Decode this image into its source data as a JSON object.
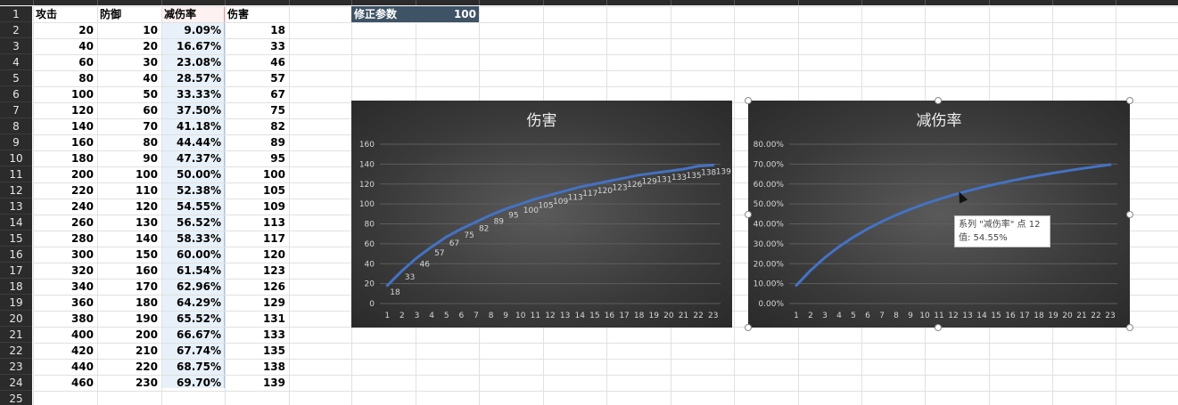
{
  "sheet": {
    "headers": {
      "attack": "攻击",
      "defense": "防御",
      "reduction": "减伤率",
      "damage": "伤害"
    },
    "row_numbers": [
      "1",
      "2",
      "3",
      "4",
      "5",
      "6",
      "7",
      "8",
      "9",
      "10",
      "11",
      "12",
      "13",
      "14",
      "15",
      "16",
      "17",
      "18",
      "19",
      "20",
      "21",
      "22",
      "23",
      "24",
      "25"
    ],
    "rows": [
      [
        "20",
        "10",
        "9.09%",
        "18"
      ],
      [
        "40",
        "20",
        "16.67%",
        "33"
      ],
      [
        "60",
        "30",
        "23.08%",
        "46"
      ],
      [
        "80",
        "40",
        "28.57%",
        "57"
      ],
      [
        "100",
        "50",
        "33.33%",
        "67"
      ],
      [
        "120",
        "60",
        "37.50%",
        "75"
      ],
      [
        "140",
        "70",
        "41.18%",
        "82"
      ],
      [
        "160",
        "80",
        "44.44%",
        "89"
      ],
      [
        "180",
        "90",
        "47.37%",
        "95"
      ],
      [
        "200",
        "100",
        "50.00%",
        "100"
      ],
      [
        "220",
        "110",
        "52.38%",
        "105"
      ],
      [
        "240",
        "120",
        "54.55%",
        "109"
      ],
      [
        "260",
        "130",
        "56.52%",
        "113"
      ],
      [
        "280",
        "140",
        "58.33%",
        "117"
      ],
      [
        "300",
        "150",
        "60.00%",
        "120"
      ],
      [
        "320",
        "160",
        "61.54%",
        "123"
      ],
      [
        "340",
        "170",
        "62.96%",
        "126"
      ],
      [
        "360",
        "180",
        "64.29%",
        "129"
      ],
      [
        "380",
        "190",
        "65.52%",
        "131"
      ],
      [
        "400",
        "200",
        "66.67%",
        "133"
      ],
      [
        "420",
        "210",
        "67.74%",
        "135"
      ],
      [
        "440",
        "220",
        "68.75%",
        "138"
      ],
      [
        "460",
        "230",
        "69.70%",
        "139"
      ]
    ],
    "param_label": "修正参数",
    "param_value": "100"
  },
  "tooltip": {
    "line1": "系列 \"减伤率\" 点 12",
    "line2": "值: 54.55%"
  },
  "chart_data": [
    {
      "type": "line",
      "title": "伤害",
      "x": [
        1,
        2,
        3,
        4,
        5,
        6,
        7,
        8,
        9,
        10,
        11,
        12,
        13,
        14,
        15,
        16,
        17,
        18,
        19,
        20,
        21,
        22,
        23
      ],
      "series": [
        {
          "values": [
            18,
            33,
            46,
            57,
            67,
            75,
            82,
            89,
            95,
            100,
            105,
            109,
            113,
            117,
            120,
            123,
            126,
            129,
            131,
            133,
            135,
            138,
            139
          ]
        }
      ],
      "ylim": [
        0,
        160
      ],
      "yticks": [
        "0",
        "20",
        "40",
        "60",
        "80",
        "100",
        "120",
        "140",
        "160"
      ],
      "data_labels": true,
      "grid": true,
      "line_color": "#4472c4"
    },
    {
      "type": "line",
      "title": "减伤率",
      "x": [
        1,
        2,
        3,
        4,
        5,
        6,
        7,
        8,
        9,
        10,
        11,
        12,
        13,
        14,
        15,
        16,
        17,
        18,
        19,
        20,
        21,
        22,
        23
      ],
      "series": [
        {
          "values": [
            9.09,
            16.67,
            23.08,
            28.57,
            33.33,
            37.5,
            41.18,
            44.44,
            47.37,
            50.0,
            52.38,
            54.55,
            56.52,
            58.33,
            60.0,
            61.54,
            62.96,
            64.29,
            65.52,
            66.67,
            67.74,
            68.75,
            69.7
          ]
        }
      ],
      "ylim": [
        0,
        80
      ],
      "yticks": [
        "0.00%",
        "10.00%",
        "20.00%",
        "30.00%",
        "40.00%",
        "50.00%",
        "60.00%",
        "70.00%",
        "80.00%"
      ],
      "data_labels": false,
      "grid": true,
      "line_color": "#4472c4"
    }
  ]
}
